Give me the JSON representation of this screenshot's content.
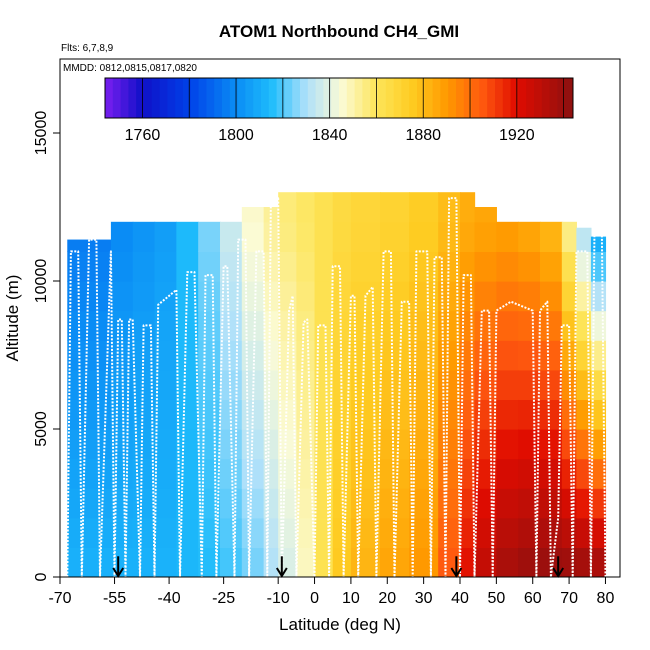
{
  "chart_data": {
    "type": "heatmap",
    "title": "ATOM1 Northbound CH4_GMI",
    "flights_note": "Flts: 6,7,8,9",
    "dates_note": "MMDD: 0812,0815,0817,0820",
    "xlabel": "Latitude (deg N)",
    "ylabel": "Altitude (m)",
    "xlim": [
      -70,
      84
    ],
    "ylim": [
      0,
      17500
    ],
    "x_ticks": [
      -70,
      -55,
      -40,
      -25,
      -10,
      0,
      10,
      20,
      30,
      40,
      50,
      60,
      70,
      80
    ],
    "x_tick_labels": [
      "-70",
      "-55",
      "-40",
      "-25",
      "-10",
      "0",
      "10",
      "20",
      "30",
      "40",
      "50",
      "60",
      "70",
      "80"
    ],
    "y_ticks": [
      0,
      5000,
      10000,
      15000
    ],
    "y_tick_labels": [
      "0",
      "5000",
      "10000",
      "15000"
    ],
    "colorbar": {
      "min": 1744,
      "max": 1944,
      "ticks": [
        1760,
        1800,
        1840,
        1880,
        1920
      ],
      "tick_labels": [
        "1760",
        "1800",
        "1840",
        "1880",
        "1920"
      ],
      "stops": [
        {
          "v": 1744,
          "c": "#7a1ef0"
        },
        {
          "v": 1760,
          "c": "#1010c8"
        },
        {
          "v": 1780,
          "c": "#0040e8"
        },
        {
          "v": 1800,
          "c": "#0a8cf5"
        },
        {
          "v": 1815,
          "c": "#1ebcfb"
        },
        {
          "v": 1830,
          "c": "#aee0fa"
        },
        {
          "v": 1845,
          "c": "#fbfbd6"
        },
        {
          "v": 1860,
          "c": "#fde55a"
        },
        {
          "v": 1875,
          "c": "#fecc22"
        },
        {
          "v": 1890,
          "c": "#ff9a00"
        },
        {
          "v": 1905,
          "c": "#ff5a0f"
        },
        {
          "v": 1920,
          "c": "#e00c00"
        },
        {
          "v": 1944,
          "c": "#8c1010"
        }
      ]
    },
    "field": {
      "lat_edges": [
        -68,
        -56,
        -50,
        -44,
        -38,
        -32,
        -26,
        -20,
        -14,
        -10,
        -5,
        0,
        5,
        10,
        18,
        26,
        34,
        40,
        44,
        50,
        56,
        62,
        68,
        72,
        76,
        80
      ],
      "alt_edges": [
        0,
        1000,
        2000,
        3000,
        4000,
        5000,
        6000,
        7000,
        8000,
        9000,
        10000,
        11000,
        12000,
        13000
      ],
      "ceiling_m": [
        11400,
        12000,
        12000,
        12000,
        12000,
        12000,
        12000,
        12500,
        12500,
        13000,
        13000,
        13000,
        13000,
        13000,
        13000,
        13000,
        13000,
        13000,
        12500,
        12000,
        12000,
        12000,
        12000,
        11800,
        11500
      ],
      "lat_anchors": [
        -68,
        -40,
        -26,
        -18,
        -10,
        0,
        5,
        10,
        20,
        32,
        44,
        55,
        65,
        72,
        80
      ],
      "ch4_low_alt": [
        1812,
        1812,
        1816,
        1822,
        1833,
        1852,
        1872,
        1880,
        1886,
        1892,
        1926,
        1940,
        1942,
        1942,
        1940
      ],
      "ch4_high_alt": [
        1792,
        1806,
        1830,
        1845,
        1855,
        1860,
        1865,
        1868,
        1870,
        1875,
        1886,
        1888,
        1880,
        1840,
        1790
      ]
    },
    "flight_track": [
      {
        "lat": -68,
        "alt": 0
      },
      {
        "lat": -67,
        "alt": 11000
      },
      {
        "lat": -65,
        "alt": 11000
      },
      {
        "lat": -64,
        "alt": 0
      },
      {
        "lat": -62,
        "alt": 11400
      },
      {
        "lat": -60,
        "alt": 11400
      },
      {
        "lat": -59,
        "alt": 0
      },
      {
        "lat": -56,
        "alt": 11000
      },
      {
        "lat": -55,
        "alt": 0
      },
      {
        "lat": -54,
        "alt": 8700
      },
      {
        "lat": -53,
        "alt": 8700
      },
      {
        "lat": -52,
        "alt": 0
      },
      {
        "lat": -51,
        "alt": 8700
      },
      {
        "lat": -50,
        "alt": 8700
      },
      {
        "lat": -48,
        "alt": 0
      },
      {
        "lat": -47,
        "alt": 8500
      },
      {
        "lat": -45,
        "alt": 8500
      },
      {
        "lat": -44,
        "alt": 0
      },
      {
        "lat": -43,
        "alt": 9200
      },
      {
        "lat": -40,
        "alt": 9500
      },
      {
        "lat": -38,
        "alt": 9700
      },
      {
        "lat": -37,
        "alt": 0
      },
      {
        "lat": -35,
        "alt": 10300
      },
      {
        "lat": -33,
        "alt": 10300
      },
      {
        "lat": -31,
        "alt": 0
      },
      {
        "lat": -30,
        "alt": 10200
      },
      {
        "lat": -28,
        "alt": 10200
      },
      {
        "lat": -27,
        "alt": 0
      },
      {
        "lat": -25,
        "alt": 10500
      },
      {
        "lat": -24,
        "alt": 10500
      },
      {
        "lat": -22,
        "alt": 0
      },
      {
        "lat": -21,
        "alt": 11400
      },
      {
        "lat": -19,
        "alt": 11400
      },
      {
        "lat": -18,
        "alt": 0
      },
      {
        "lat": -16,
        "alt": 11000
      },
      {
        "lat": -14,
        "alt": 11000
      },
      {
        "lat": -13,
        "alt": 0
      },
      {
        "lat": -12,
        "alt": 12800
      },
      {
        "lat": -10,
        "alt": 12800
      },
      {
        "lat": -9,
        "alt": 0
      },
      {
        "lat": -7,
        "alt": 9000
      },
      {
        "lat": -6,
        "alt": 9500
      },
      {
        "lat": -5,
        "alt": 0
      },
      {
        "lat": -3,
        "alt": 8600
      },
      {
        "lat": -2,
        "alt": 8700
      },
      {
        "lat": 0,
        "alt": 0
      },
      {
        "lat": 1,
        "alt": 8500
      },
      {
        "lat": 3,
        "alt": 8500
      },
      {
        "lat": 4,
        "alt": 0
      },
      {
        "lat": 5,
        "alt": 10500
      },
      {
        "lat": 7,
        "alt": 10500
      },
      {
        "lat": 8,
        "alt": 0
      },
      {
        "lat": 10,
        "alt": 9500
      },
      {
        "lat": 11,
        "alt": 9500
      },
      {
        "lat": 12,
        "alt": 0
      },
      {
        "lat": 14,
        "alt": 9500
      },
      {
        "lat": 16,
        "alt": 9800
      },
      {
        "lat": 17,
        "alt": 0
      },
      {
        "lat": 19,
        "alt": 11000
      },
      {
        "lat": 21,
        "alt": 11000
      },
      {
        "lat": 22,
        "alt": 0
      },
      {
        "lat": 24,
        "alt": 9300
      },
      {
        "lat": 26,
        "alt": 9300
      },
      {
        "lat": 27,
        "alt": 0
      },
      {
        "lat": 28,
        "alt": 11000
      },
      {
        "lat": 31,
        "alt": 11000
      },
      {
        "lat": 32,
        "alt": 0
      },
      {
        "lat": 33,
        "alt": 10800
      },
      {
        "lat": 35,
        "alt": 10800
      },
      {
        "lat": 36,
        "alt": 0
      },
      {
        "lat": 37,
        "alt": 12800
      },
      {
        "lat": 39,
        "alt": 12800
      },
      {
        "lat": 40,
        "alt": 0
      },
      {
        "lat": 41,
        "alt": 10200
      },
      {
        "lat": 43,
        "alt": 10200
      },
      {
        "lat": 44,
        "alt": 0
      },
      {
        "lat": 46,
        "alt": 9000
      },
      {
        "lat": 48,
        "alt": 9000
      },
      {
        "lat": 49,
        "alt": 0
      },
      {
        "lat": 50,
        "alt": 9000
      },
      {
        "lat": 54,
        "alt": 9300
      },
      {
        "lat": 60,
        "alt": 9000
      },
      {
        "lat": 61,
        "alt": 0
      },
      {
        "lat": 62,
        "alt": 9000
      },
      {
        "lat": 64,
        "alt": 9300
      },
      {
        "lat": 65,
        "alt": 0
      },
      {
        "lat": 67,
        "alt": 2000
      },
      {
        "lat": 68,
        "alt": 8500
      },
      {
        "lat": 70,
        "alt": 8500
      },
      {
        "lat": 71,
        "alt": 0
      },
      {
        "lat": 72,
        "alt": 11000
      },
      {
        "lat": 75,
        "alt": 11000
      },
      {
        "lat": 76,
        "alt": 0
      },
      {
        "lat": 77,
        "alt": 11800
      },
      {
        "lat": 79,
        "alt": 11800
      },
      {
        "lat": 80,
        "alt": 0
      }
    ],
    "arrow_latitudes": [
      -54,
      -9,
      39,
      67
    ]
  }
}
